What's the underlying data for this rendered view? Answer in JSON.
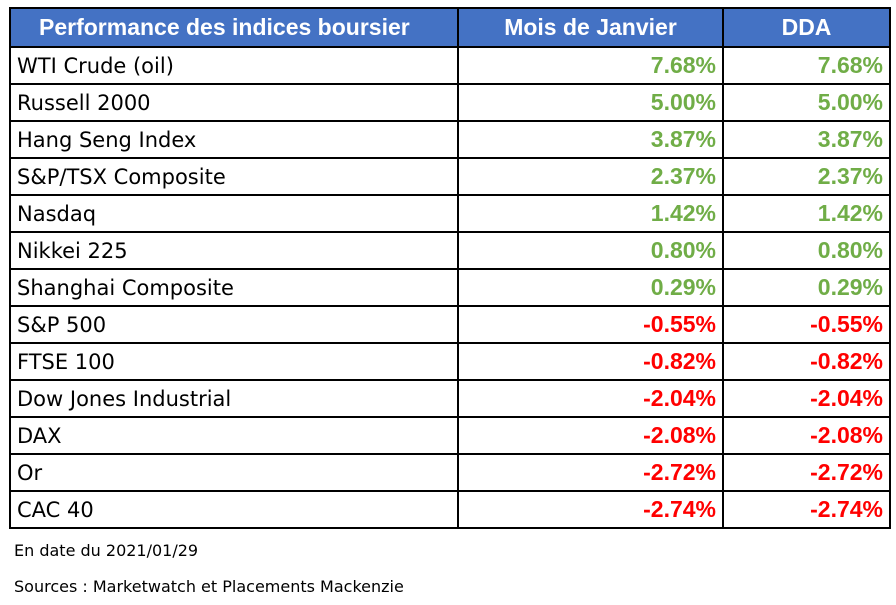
{
  "table": {
    "headers": {
      "name": "Performance des indices boursier",
      "month": "Mois de Janvier",
      "ytd": "DDA"
    },
    "colors": {
      "header_bg": "#4472c4",
      "positive": "#70ad47",
      "negative": "#ff0000"
    },
    "rows": [
      {
        "name": "WTI Crude (oil)",
        "month": "7.68%",
        "ytd": "7.68%",
        "sign": "pos"
      },
      {
        "name": "Russell 2000",
        "month": "5.00%",
        "ytd": "5.00%",
        "sign": "pos"
      },
      {
        "name": "Hang Seng Index",
        "month": "3.87%",
        "ytd": "3.87%",
        "sign": "pos"
      },
      {
        "name": "S&P/TSX Composite",
        "month": "2.37%",
        "ytd": "2.37%",
        "sign": "pos"
      },
      {
        "name": "Nasdaq",
        "month": "1.42%",
        "ytd": "1.42%",
        "sign": "pos"
      },
      {
        "name": "Nikkei 225",
        "month": "0.80%",
        "ytd": "0.80%",
        "sign": "pos"
      },
      {
        "name": "Shanghai Composite",
        "month": "0.29%",
        "ytd": "0.29%",
        "sign": "pos"
      },
      {
        "name": "S&P 500",
        "month": "-0.55%",
        "ytd": "-0.55%",
        "sign": "neg"
      },
      {
        "name": "FTSE 100",
        "month": "-0.82%",
        "ytd": "-0.82%",
        "sign": "neg"
      },
      {
        "name": "Dow Jones Industrial",
        "month": "-2.04%",
        "ytd": "-2.04%",
        "sign": "neg"
      },
      {
        "name": "DAX",
        "month": "-2.08%",
        "ytd": "-2.08%",
        "sign": "neg"
      },
      {
        "name": "Or",
        "month": "-2.72%",
        "ytd": "-2.72%",
        "sign": "neg"
      },
      {
        "name": "CAC 40",
        "month": "-2.74%",
        "ytd": "-2.74%",
        "sign": "neg"
      }
    ]
  },
  "footer": {
    "date_note": "En date du 2021/01/29",
    "sources_note": "Sources : Marketwatch et Placements Mackenzie"
  }
}
